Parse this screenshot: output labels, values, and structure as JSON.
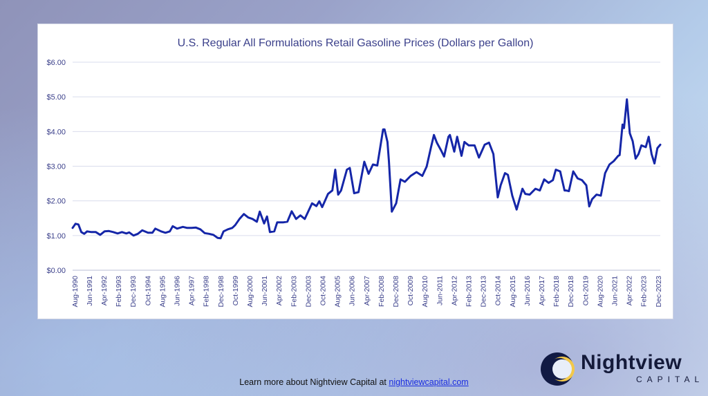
{
  "chart_data": {
    "type": "line",
    "title": "U.S. Regular All Formulations Retail Gasoline Prices (Dollars per Gallon)",
    "xlabel": "",
    "ylabel": "",
    "ylim": [
      0,
      6
    ],
    "y_ticks": [
      "$0.00",
      "$1.00",
      "$2.00",
      "$3.00",
      "$4.00",
      "$5.00",
      "$6.00"
    ],
    "x_ticks": [
      "Aug-1990",
      "Jun-1991",
      "Apr-1992",
      "Feb-1993",
      "Dec-1993",
      "Oct-1994",
      "Aug-1995",
      "Jun-1996",
      "Apr-1997",
      "Feb-1998",
      "Dec-1998",
      "Oct-1999",
      "Aug-2000",
      "Jun-2001",
      "Apr-2002",
      "Feb-2003",
      "Dec-2003",
      "Oct-2004",
      "Aug-2005",
      "Jun-2006",
      "Apr-2007",
      "Feb-2008",
      "Dec-2008",
      "Oct-2009",
      "Aug-2010",
      "Jun-2011",
      "Apr-2012",
      "Feb-2013",
      "Dec-2013",
      "Oct-2014",
      "Aug-2015",
      "Jun-2016",
      "Apr-2017",
      "Feb-2018",
      "Dec-2018",
      "Oct-2019",
      "Aug-2020",
      "Jun-2021",
      "Apr-2022",
      "Feb-2023",
      "Dec-2023"
    ],
    "grid": true,
    "line_color": "#1526a8",
    "series": [
      {
        "points": [
          [
            "1990-08",
            1.22
          ],
          [
            "1990-10",
            1.34
          ],
          [
            "1990-12",
            1.32
          ],
          [
            "1991-02",
            1.1
          ],
          [
            "1991-04",
            1.05
          ],
          [
            "1991-06",
            1.12
          ],
          [
            "1991-09",
            1.1
          ],
          [
            "1991-12",
            1.1
          ],
          [
            "1992-03",
            1.02
          ],
          [
            "1992-06",
            1.12
          ],
          [
            "1992-09",
            1.13
          ],
          [
            "1992-12",
            1.1
          ],
          [
            "1993-03",
            1.06
          ],
          [
            "1993-06",
            1.1
          ],
          [
            "1993-09",
            1.06
          ],
          [
            "1993-11",
            1.09
          ],
          [
            "1994-02",
            1.0
          ],
          [
            "1994-05",
            1.05
          ],
          [
            "1994-08",
            1.15
          ],
          [
            "1994-12",
            1.08
          ],
          [
            "1995-03",
            1.08
          ],
          [
            "1995-05",
            1.2
          ],
          [
            "1995-09",
            1.12
          ],
          [
            "1995-12",
            1.08
          ],
          [
            "1996-03",
            1.12
          ],
          [
            "1996-05",
            1.27
          ],
          [
            "1996-08",
            1.2
          ],
          [
            "1996-12",
            1.25
          ],
          [
            "1997-03",
            1.22
          ],
          [
            "1997-06",
            1.22
          ],
          [
            "1997-09",
            1.23
          ],
          [
            "1997-12",
            1.18
          ],
          [
            "1998-03",
            1.07
          ],
          [
            "1998-06",
            1.05
          ],
          [
            "1998-09",
            1.02
          ],
          [
            "1998-12",
            0.93
          ],
          [
            "1999-02",
            0.92
          ],
          [
            "1999-04",
            1.12
          ],
          [
            "1999-07",
            1.18
          ],
          [
            "1999-10",
            1.22
          ],
          [
            "1999-12",
            1.3
          ],
          [
            "2000-03",
            1.48
          ],
          [
            "2000-06",
            1.62
          ],
          [
            "2000-09",
            1.52
          ],
          [
            "2000-12",
            1.48
          ],
          [
            "2001-03",
            1.4
          ],
          [
            "2001-05",
            1.69
          ],
          [
            "2001-08",
            1.35
          ],
          [
            "2001-10",
            1.55
          ],
          [
            "2001-12",
            1.1
          ],
          [
            "2002-03",
            1.12
          ],
          [
            "2002-05",
            1.38
          ],
          [
            "2002-09",
            1.38
          ],
          [
            "2002-12",
            1.4
          ],
          [
            "2003-03",
            1.7
          ],
          [
            "2003-06",
            1.48
          ],
          [
            "2003-09",
            1.58
          ],
          [
            "2003-12",
            1.48
          ],
          [
            "2004-05",
            1.93
          ],
          [
            "2004-08",
            1.85
          ],
          [
            "2004-10",
            1.99
          ],
          [
            "2004-12",
            1.82
          ],
          [
            "2005-04",
            2.2
          ],
          [
            "2005-07",
            2.3
          ],
          [
            "2005-09",
            2.9
          ],
          [
            "2005-11",
            2.18
          ],
          [
            "2006-01",
            2.3
          ],
          [
            "2006-05",
            2.9
          ],
          [
            "2006-07",
            2.95
          ],
          [
            "2006-10",
            2.22
          ],
          [
            "2007-01",
            2.25
          ],
          [
            "2007-05",
            3.13
          ],
          [
            "2007-08",
            2.78
          ],
          [
            "2007-11",
            3.05
          ],
          [
            "2008-02",
            3.02
          ],
          [
            "2008-06",
            4.06
          ],
          [
            "2008-07",
            4.06
          ],
          [
            "2008-09",
            3.7
          ],
          [
            "2008-10",
            3.15
          ],
          [
            "2008-12",
            1.69
          ],
          [
            "2009-03",
            1.93
          ],
          [
            "2009-06",
            2.62
          ],
          [
            "2009-09",
            2.55
          ],
          [
            "2010-01",
            2.72
          ],
          [
            "2010-05",
            2.83
          ],
          [
            "2010-09",
            2.72
          ],
          [
            "2010-12",
            2.99
          ],
          [
            "2011-03",
            3.55
          ],
          [
            "2011-05",
            3.9
          ],
          [
            "2011-07",
            3.68
          ],
          [
            "2011-10",
            3.45
          ],
          [
            "2011-12",
            3.28
          ],
          [
            "2012-03",
            3.85
          ],
          [
            "2012-04",
            3.9
          ],
          [
            "2012-07",
            3.42
          ],
          [
            "2012-09",
            3.85
          ],
          [
            "2012-12",
            3.3
          ],
          [
            "2013-02",
            3.7
          ],
          [
            "2013-05",
            3.6
          ],
          [
            "2013-09",
            3.6
          ],
          [
            "2013-12",
            3.25
          ],
          [
            "2014-04",
            3.62
          ],
          [
            "2014-07",
            3.68
          ],
          [
            "2014-10",
            3.35
          ],
          [
            "2015-01",
            2.1
          ],
          [
            "2015-03",
            2.45
          ],
          [
            "2015-06",
            2.8
          ],
          [
            "2015-08",
            2.75
          ],
          [
            "2015-11",
            2.15
          ],
          [
            "2016-02",
            1.75
          ],
          [
            "2016-06",
            2.35
          ],
          [
            "2016-08",
            2.2
          ],
          [
            "2016-11",
            2.18
          ],
          [
            "2017-03",
            2.35
          ],
          [
            "2017-06",
            2.3
          ],
          [
            "2017-09",
            2.62
          ],
          [
            "2017-12",
            2.52
          ],
          [
            "2018-03",
            2.6
          ],
          [
            "2018-05",
            2.9
          ],
          [
            "2018-08",
            2.85
          ],
          [
            "2018-11",
            2.3
          ],
          [
            "2018-12",
            2.3
          ],
          [
            "2019-02",
            2.28
          ],
          [
            "2019-05",
            2.85
          ],
          [
            "2019-08",
            2.65
          ],
          [
            "2019-11",
            2.6
          ],
          [
            "2020-02",
            2.45
          ],
          [
            "2020-04",
            1.84
          ],
          [
            "2020-06",
            2.05
          ],
          [
            "2020-09",
            2.18
          ],
          [
            "2020-12",
            2.15
          ],
          [
            "2021-03",
            2.8
          ],
          [
            "2021-06",
            3.05
          ],
          [
            "2021-09",
            3.15
          ],
          [
            "2021-12",
            3.3
          ],
          [
            "2022-01",
            3.32
          ],
          [
            "2022-03",
            4.2
          ],
          [
            "2022-04",
            4.1
          ],
          [
            "2022-06",
            4.93
          ],
          [
            "2022-08",
            3.95
          ],
          [
            "2022-10",
            3.72
          ],
          [
            "2022-12",
            3.22
          ],
          [
            "2023-02",
            3.35
          ],
          [
            "2023-04",
            3.6
          ],
          [
            "2023-07",
            3.55
          ],
          [
            "2023-09",
            3.85
          ],
          [
            "2023-11",
            3.35
          ],
          [
            "2024-01",
            3.08
          ],
          [
            "2024-03",
            3.52
          ],
          [
            "2024-05",
            3.62
          ]
        ]
      }
    ]
  },
  "footer": {
    "text": "Learn more about Nightview Capital at ",
    "link": "nightviewcapital.com"
  },
  "logo": {
    "name": "Nightview",
    "sub": "CAPITAL"
  }
}
